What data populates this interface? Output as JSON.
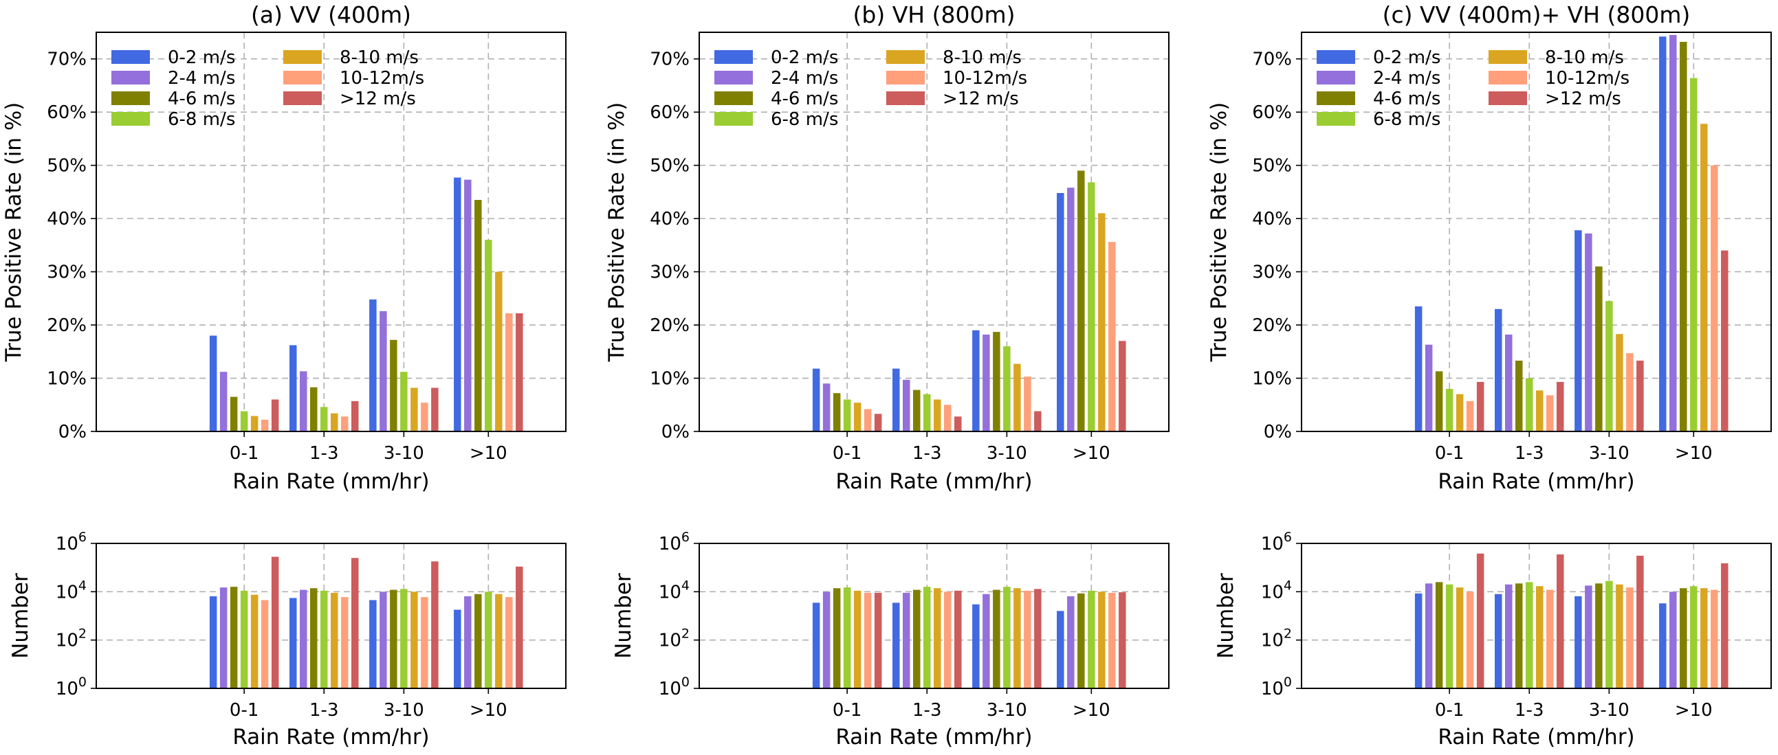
{
  "chart_data": [
    {
      "type": "bar",
      "title": "(a) VV (400m)",
      "xlabel": "Rain Rate (mm/hr)",
      "ylabel": "True Positive Rate (in %)",
      "ylim": [
        0,
        0.75
      ],
      "yticks": [
        "0%",
        "10%",
        "20%",
        "30%",
        "40%",
        "50%",
        "60%",
        "70%"
      ],
      "categories": [
        "0-1",
        "1-3",
        "3-10",
        ">10"
      ],
      "series": [
        {
          "name": "0-2 m/s",
          "color": "#4169e1",
          "values": [
            0.18,
            0.162,
            0.248,
            0.477
          ]
        },
        {
          "name": "2-4 m/s",
          "color": "#9370db",
          "values": [
            0.112,
            0.113,
            0.226,
            0.473
          ]
        },
        {
          "name": "4-6 m/s",
          "color": "#808000",
          "values": [
            0.065,
            0.083,
            0.172,
            0.435
          ]
        },
        {
          "name": "6-8 m/s",
          "color": "#9acd32",
          "values": [
            0.038,
            0.046,
            0.112,
            0.36
          ]
        },
        {
          "name": "8-10 m/s",
          "color": "#daa520",
          "values": [
            0.029,
            0.034,
            0.082,
            0.3
          ]
        },
        {
          "name": "10-12m/s",
          "color": "#ffa07a",
          "values": [
            0.022,
            0.028,
            0.054,
            0.222
          ]
        },
        {
          "name": ">12 m/s",
          "color": "#cd5c5c",
          "values": [
            0.06,
            0.057,
            0.082,
            0.222
          ]
        }
      ]
    },
    {
      "type": "bar",
      "title": "(b) VH (800m)",
      "xlabel": "Rain Rate (mm/hr)",
      "ylabel": "True Positive Rate (in %)",
      "ylim": [
        0,
        0.75
      ],
      "yticks": [
        "0%",
        "10%",
        "20%",
        "30%",
        "40%",
        "50%",
        "60%",
        "70%"
      ],
      "categories": [
        "0-1",
        "1-3",
        "3-10",
        ">10"
      ],
      "series": [
        {
          "name": "0-2 m/s",
          "color": "#4169e1",
          "values": [
            0.118,
            0.118,
            0.19,
            0.448
          ]
        },
        {
          "name": "2-4 m/s",
          "color": "#9370db",
          "values": [
            0.09,
            0.097,
            0.182,
            0.458
          ]
        },
        {
          "name": "4-6 m/s",
          "color": "#808000",
          "values": [
            0.072,
            0.078,
            0.187,
            0.49
          ]
        },
        {
          "name": "6-8 m/s",
          "color": "#9acd32",
          "values": [
            0.06,
            0.07,
            0.16,
            0.468
          ]
        },
        {
          "name": "8-10 m/s",
          "color": "#daa520",
          "values": [
            0.054,
            0.06,
            0.127,
            0.41
          ]
        },
        {
          "name": "10-12m/s",
          "color": "#ffa07a",
          "values": [
            0.042,
            0.05,
            0.103,
            0.356
          ]
        },
        {
          "name": ">12 m/s",
          "color": "#cd5c5c",
          "values": [
            0.033,
            0.028,
            0.038,
            0.17
          ]
        }
      ]
    },
    {
      "type": "bar",
      "title": "(c) VV (400m)+ VH (800m)",
      "xlabel": "Rain Rate (mm/hr)",
      "ylabel": "True Positive Rate (in %)",
      "ylim": [
        0,
        0.75
      ],
      "yticks": [
        "0%",
        "10%",
        "20%",
        "30%",
        "40%",
        "50%",
        "60%",
        "70%"
      ],
      "categories": [
        "0-1",
        "1-3",
        "3-10",
        ">10"
      ],
      "series": [
        {
          "name": "0-2 m/s",
          "color": "#4169e1",
          "values": [
            0.235,
            0.23,
            0.378,
            0.742
          ]
        },
        {
          "name": "2-4 m/s",
          "color": "#9370db",
          "values": [
            0.163,
            0.182,
            0.372,
            0.745
          ]
        },
        {
          "name": "4-6 m/s",
          "color": "#808000",
          "values": [
            0.113,
            0.133,
            0.31,
            0.732
          ]
        },
        {
          "name": "6-8 m/s",
          "color": "#9acd32",
          "values": [
            0.08,
            0.1,
            0.245,
            0.664
          ]
        },
        {
          "name": "8-10 m/s",
          "color": "#daa520",
          "values": [
            0.07,
            0.077,
            0.183,
            0.578
          ]
        },
        {
          "name": "10-12m/s",
          "color": "#ffa07a",
          "values": [
            0.057,
            0.068,
            0.147,
            0.5
          ]
        },
        {
          "name": ">12 m/s",
          "color": "#cd5c5c",
          "values": [
            0.093,
            0.093,
            0.133,
            0.34
          ]
        }
      ]
    },
    {
      "type": "bar",
      "title": "",
      "xlabel": "Rain Rate (mm/hr)",
      "ylabel": "Number",
      "yscale": "log",
      "ylim": [
        1,
        1000000
      ],
      "yticks": [
        "10^0",
        "10^2",
        "10^4",
        "10^6"
      ],
      "categories": [
        "0-1",
        "1-3",
        "3-10",
        ">10"
      ],
      "series": [
        {
          "name": "0-2 m/s",
          "color": "#4169e1",
          "values": [
            6500,
            5500,
            4500,
            1800
          ]
        },
        {
          "name": "2-4 m/s",
          "color": "#9370db",
          "values": [
            15000,
            12000,
            10000,
            6500
          ]
        },
        {
          "name": "4-6 m/s",
          "color": "#808000",
          "values": [
            16000,
            14000,
            12000,
            8000
          ]
        },
        {
          "name": "6-8 m/s",
          "color": "#9acd32",
          "values": [
            11000,
            11000,
            13000,
            10000
          ]
        },
        {
          "name": "8-10 m/s",
          "color": "#daa520",
          "values": [
            7500,
            9000,
            10000,
            8000
          ]
        },
        {
          "name": "10-12m/s",
          "color": "#ffa07a",
          "values": [
            4500,
            6000,
            6000,
            6000
          ]
        },
        {
          "name": ">12 m/s",
          "color": "#cd5c5c",
          "values": [
            280000,
            250000,
            180000,
            110000
          ]
        }
      ]
    },
    {
      "type": "bar",
      "title": "",
      "xlabel": "Rain Rate (mm/hr)",
      "ylabel": "Number",
      "yscale": "log",
      "ylim": [
        1,
        1000000
      ],
      "yticks": [
        "10^0",
        "10^2",
        "10^4",
        "10^6"
      ],
      "categories": [
        "0-1",
        "1-3",
        "3-10",
        ">10"
      ],
      "series": [
        {
          "name": "0-2 m/s",
          "color": "#4169e1",
          "values": [
            3500,
            3500,
            3000,
            1600
          ]
        },
        {
          "name": "2-4 m/s",
          "color": "#9370db",
          "values": [
            10000,
            9000,
            8000,
            6500
          ]
        },
        {
          "name": "4-6 m/s",
          "color": "#808000",
          "values": [
            14000,
            12000,
            12000,
            8500
          ]
        },
        {
          "name": "6-8 m/s",
          "color": "#9acd32",
          "values": [
            15000,
            16000,
            16000,
            11000
          ]
        },
        {
          "name": "8-10 m/s",
          "color": "#daa520",
          "values": [
            11000,
            14000,
            14000,
            10000
          ]
        },
        {
          "name": "10-12m/s",
          "color": "#ffa07a",
          "values": [
            9000,
            10000,
            11000,
            9000
          ]
        },
        {
          "name": ">12 m/s",
          "color": "#cd5c5c",
          "values": [
            9000,
            11000,
            13000,
            9500
          ]
        }
      ]
    },
    {
      "type": "bar",
      "title": "",
      "xlabel": "Rain Rate (mm/hr)",
      "ylabel": "Number",
      "yscale": "log",
      "ylim": [
        1,
        1000000
      ],
      "yticks": [
        "10^0",
        "10^2",
        "10^4",
        "10^6"
      ],
      "categories": [
        "0-1",
        "1-3",
        "3-10",
        ">10"
      ],
      "series": [
        {
          "name": "0-2 m/s",
          "color": "#4169e1",
          "values": [
            8500,
            8000,
            6500,
            3300
          ]
        },
        {
          "name": "2-4 m/s",
          "color": "#9370db",
          "values": [
            22000,
            20000,
            18000,
            10000
          ]
        },
        {
          "name": "4-6 m/s",
          "color": "#808000",
          "values": [
            25000,
            22000,
            22000,
            14000
          ]
        },
        {
          "name": "6-8 m/s",
          "color": "#9acd32",
          "values": [
            20000,
            25000,
            28000,
            17000
          ]
        },
        {
          "name": "8-10 m/s",
          "color": "#daa520",
          "values": [
            15000,
            17000,
            20000,
            14000
          ]
        },
        {
          "name": "10-12m/s",
          "color": "#ffa07a",
          "values": [
            10000,
            12000,
            15000,
            12000
          ]
        },
        {
          "name": ">12 m/s",
          "color": "#cd5c5c",
          "values": [
            380000,
            350000,
            310000,
            150000
          ]
        }
      ]
    }
  ]
}
